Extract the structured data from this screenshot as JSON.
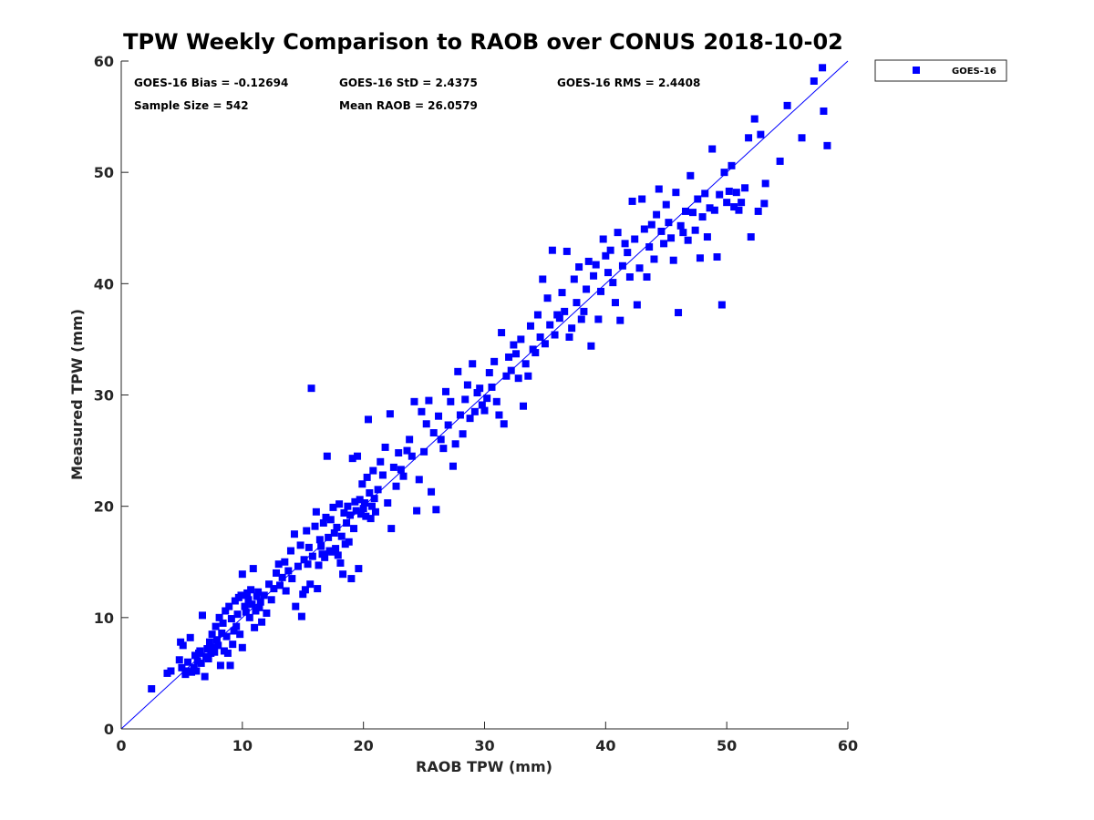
{
  "colors": {
    "series": "#0000ff",
    "axis": "#262626",
    "background": "#ffffff"
  },
  "chart_data": {
    "type": "scatter",
    "title": "TPW Weekly Comparison to RAOB over CONUS 2018-10-02",
    "xlabel": "RAOB TPW (mm)",
    "ylabel": "Measured TPW (mm)",
    "xlim": [
      0,
      60
    ],
    "ylim": [
      0,
      60
    ],
    "xticks": [
      0,
      10,
      20,
      30,
      40,
      50,
      60
    ],
    "yticks": [
      0,
      10,
      20,
      30,
      40,
      50,
      60
    ],
    "grid": false,
    "legend_position": "outside-top-right",
    "reference_line": {
      "type": "one-to-one",
      "from": [
        0,
        0
      ],
      "to": [
        60,
        60
      ]
    },
    "stats": {
      "bias": "GOES-16 Bias = -0.12694",
      "std": "GOES-16 StD = 2.4375",
      "rms": "GOES-16 RMS = 2.4408",
      "sample_size": "Sample Size = 542",
      "mean_raob": "Mean RAOB = 26.0579"
    },
    "series": [
      {
        "name": "GOES-16",
        "marker": "square",
        "points": [
          [
            2.5,
            3.6
          ],
          [
            3.8,
            5.0
          ],
          [
            4.1,
            5.2
          ],
          [
            4.8,
            6.2
          ],
          [
            4.9,
            7.8
          ],
          [
            5.0,
            5.5
          ],
          [
            5.1,
            7.5
          ],
          [
            5.3,
            4.9
          ],
          [
            5.4,
            5.2
          ],
          [
            5.5,
            6.0
          ],
          [
            5.7,
            8.2
          ],
          [
            5.8,
            5.1
          ],
          [
            6.0,
            5.5
          ],
          [
            6.1,
            6.6
          ],
          [
            6.2,
            5.2
          ],
          [
            6.3,
            6.1
          ],
          [
            6.4,
            6.8
          ],
          [
            6.5,
            7.0
          ],
          [
            6.6,
            5.9
          ],
          [
            6.7,
            10.2
          ],
          [
            6.9,
            4.7
          ],
          [
            7.0,
            6.5
          ],
          [
            7.1,
            7.2
          ],
          [
            7.2,
            6.3
          ],
          [
            7.3,
            7.8
          ],
          [
            7.4,
            6.8
          ],
          [
            7.5,
            8.5
          ],
          [
            7.6,
            7.3
          ],
          [
            7.7,
            6.9
          ],
          [
            7.8,
            9.2
          ],
          [
            7.9,
            8.0
          ],
          [
            8.0,
            7.5
          ],
          [
            8.1,
            10.0
          ],
          [
            8.2,
            5.7
          ],
          [
            8.3,
            8.6
          ],
          [
            8.4,
            9.5
          ],
          [
            8.5,
            7.0
          ],
          [
            8.6,
            10.6
          ],
          [
            8.7,
            8.3
          ],
          [
            8.8,
            6.8
          ],
          [
            8.9,
            11.0
          ],
          [
            9.0,
            5.7
          ],
          [
            9.1,
            9.9
          ],
          [
            9.2,
            7.6
          ],
          [
            9.3,
            8.8
          ],
          [
            9.4,
            11.5
          ],
          [
            9.5,
            9.2
          ],
          [
            9.6,
            10.3
          ],
          [
            9.7,
            11.8
          ],
          [
            9.8,
            8.5
          ],
          [
            9.9,
            12.0
          ],
          [
            10.0,
            13.9
          ],
          [
            10.0,
            7.3
          ],
          [
            10.2,
            11.0
          ],
          [
            10.3,
            10.5
          ],
          [
            10.4,
            12.2
          ],
          [
            10.5,
            11.6
          ],
          [
            10.6,
            10.0
          ],
          [
            10.7,
            12.5
          ],
          [
            10.8,
            11.2
          ],
          [
            10.9,
            14.4
          ],
          [
            11.0,
            9.1
          ],
          [
            11.1,
            10.6
          ],
          [
            11.2,
            11.9
          ],
          [
            11.3,
            12.3
          ],
          [
            11.4,
            10.9
          ],
          [
            11.5,
            11.4
          ],
          [
            11.6,
            9.6
          ],
          [
            11.8,
            12.0
          ],
          [
            12.0,
            10.4
          ],
          [
            12.2,
            13.0
          ],
          [
            12.4,
            11.6
          ],
          [
            12.6,
            12.6
          ],
          [
            12.8,
            14.0
          ],
          [
            13.0,
            14.8
          ],
          [
            13.1,
            12.9
          ],
          [
            13.3,
            13.6
          ],
          [
            13.5,
            15.0
          ],
          [
            13.6,
            12.4
          ],
          [
            13.8,
            14.2
          ],
          [
            14.0,
            16.0
          ],
          [
            14.1,
            13.5
          ],
          [
            14.3,
            17.5
          ],
          [
            14.4,
            11.0
          ],
          [
            14.6,
            14.6
          ],
          [
            14.8,
            16.5
          ],
          [
            14.9,
            10.1
          ],
          [
            15.0,
            12.1
          ],
          [
            15.1,
            15.2
          ],
          [
            15.2,
            12.5
          ],
          [
            15.3,
            17.8
          ],
          [
            15.4,
            14.8
          ],
          [
            15.5,
            16.3
          ],
          [
            15.6,
            13.0
          ],
          [
            15.7,
            30.6
          ],
          [
            15.8,
            15.5
          ],
          [
            16.0,
            18.2
          ],
          [
            16.1,
            19.5
          ],
          [
            16.2,
            12.6
          ],
          [
            16.3,
            14.7
          ],
          [
            16.4,
            17.0
          ],
          [
            16.5,
            16.4
          ],
          [
            16.6,
            15.7
          ],
          [
            16.7,
            18.5
          ],
          [
            16.8,
            15.4
          ],
          [
            16.9,
            19.0
          ],
          [
            17.0,
            24.5
          ],
          [
            17.1,
            17.2
          ],
          [
            17.2,
            16.0
          ],
          [
            17.3,
            18.8
          ],
          [
            17.4,
            15.9
          ],
          [
            17.5,
            19.9
          ],
          [
            17.6,
            17.6
          ],
          [
            17.7,
            16.2
          ],
          [
            17.8,
            18.1
          ],
          [
            17.9,
            15.6
          ],
          [
            18.0,
            20.2
          ],
          [
            18.1,
            14.9
          ],
          [
            18.2,
            17.3
          ],
          [
            18.3,
            13.9
          ],
          [
            18.4,
            19.4
          ],
          [
            18.5,
            16.6
          ],
          [
            18.6,
            18.5
          ],
          [
            18.7,
            20.0
          ],
          [
            18.8,
            16.8
          ],
          [
            18.9,
            19.2
          ],
          [
            19.0,
            13.5
          ],
          [
            19.1,
            24.3
          ],
          [
            19.2,
            18.0
          ],
          [
            19.3,
            20.4
          ],
          [
            19.4,
            19.6
          ],
          [
            19.5,
            24.5
          ],
          [
            19.6,
            14.4
          ],
          [
            19.7,
            20.6
          ],
          [
            19.8,
            19.3
          ],
          [
            19.9,
            22.0
          ],
          [
            20.0,
            19.8
          ],
          [
            20.1,
            20.3
          ],
          [
            20.2,
            19.1
          ],
          [
            20.3,
            22.6
          ],
          [
            20.4,
            27.8
          ],
          [
            20.5,
            21.2
          ],
          [
            20.6,
            18.9
          ],
          [
            20.7,
            20.0
          ],
          [
            20.8,
            23.2
          ],
          [
            20.9,
            20.7
          ],
          [
            21.0,
            19.5
          ],
          [
            21.2,
            21.5
          ],
          [
            21.4,
            24.0
          ],
          [
            21.6,
            22.8
          ],
          [
            21.8,
            25.3
          ],
          [
            22.0,
            20.3
          ],
          [
            22.2,
            28.3
          ],
          [
            22.3,
            18.0
          ],
          [
            22.5,
            23.5
          ],
          [
            22.7,
            21.8
          ],
          [
            22.9,
            24.8
          ],
          [
            23.1,
            23.3
          ],
          [
            23.3,
            22.7
          ],
          [
            23.6,
            25.0
          ],
          [
            23.8,
            26.0
          ],
          [
            24.0,
            24.5
          ],
          [
            24.2,
            29.4
          ],
          [
            24.4,
            19.6
          ],
          [
            24.6,
            22.4
          ],
          [
            24.8,
            28.5
          ],
          [
            25.0,
            24.9
          ],
          [
            25.2,
            27.4
          ],
          [
            25.4,
            29.5
          ],
          [
            25.6,
            21.3
          ],
          [
            25.8,
            26.6
          ],
          [
            26.0,
            19.7
          ],
          [
            26.2,
            28.1
          ],
          [
            26.4,
            26.0
          ],
          [
            26.6,
            25.2
          ],
          [
            26.8,
            30.3
          ],
          [
            27.0,
            27.3
          ],
          [
            27.2,
            29.4
          ],
          [
            27.4,
            23.6
          ],
          [
            27.6,
            25.6
          ],
          [
            27.8,
            32.1
          ],
          [
            28.0,
            28.2
          ],
          [
            28.2,
            26.5
          ],
          [
            28.4,
            29.6
          ],
          [
            28.6,
            30.9
          ],
          [
            28.8,
            27.9
          ],
          [
            29.0,
            32.8
          ],
          [
            29.2,
            28.5
          ],
          [
            29.4,
            30.2
          ],
          [
            29.6,
            30.6
          ],
          [
            29.8,
            29.1
          ],
          [
            30.0,
            28.6
          ],
          [
            30.2,
            29.7
          ],
          [
            30.4,
            32.0
          ],
          [
            30.6,
            30.7
          ],
          [
            30.8,
            33.0
          ],
          [
            31.0,
            29.4
          ],
          [
            31.2,
            28.2
          ],
          [
            31.4,
            35.6
          ],
          [
            31.6,
            27.4
          ],
          [
            31.8,
            31.7
          ],
          [
            32.0,
            33.4
          ],
          [
            32.2,
            32.2
          ],
          [
            32.4,
            34.5
          ],
          [
            32.6,
            33.7
          ],
          [
            32.8,
            31.5
          ],
          [
            33.0,
            35.0
          ],
          [
            33.2,
            29.0
          ],
          [
            33.4,
            32.8
          ],
          [
            33.6,
            31.7
          ],
          [
            33.8,
            36.2
          ],
          [
            34.0,
            34.1
          ],
          [
            34.2,
            33.8
          ],
          [
            34.4,
            37.2
          ],
          [
            34.6,
            35.2
          ],
          [
            34.8,
            40.4
          ],
          [
            35.0,
            34.6
          ],
          [
            35.2,
            38.7
          ],
          [
            35.4,
            36.3
          ],
          [
            35.6,
            43.0
          ],
          [
            35.8,
            35.4
          ],
          [
            36.0,
            37.2
          ],
          [
            36.2,
            36.9
          ],
          [
            36.4,
            39.2
          ],
          [
            36.6,
            37.5
          ],
          [
            36.8,
            42.9
          ],
          [
            37.0,
            35.2
          ],
          [
            37.2,
            36.0
          ],
          [
            37.4,
            40.4
          ],
          [
            37.6,
            38.3
          ],
          [
            37.8,
            41.5
          ],
          [
            38.0,
            36.8
          ],
          [
            38.2,
            37.5
          ],
          [
            38.4,
            39.5
          ],
          [
            38.6,
            42.0
          ],
          [
            38.8,
            34.4
          ],
          [
            39.0,
            40.7
          ],
          [
            39.2,
            41.7
          ],
          [
            39.4,
            36.8
          ],
          [
            39.6,
            39.3
          ],
          [
            39.8,
            44.0
          ],
          [
            40.0,
            42.5
          ],
          [
            40.2,
            41.0
          ],
          [
            40.4,
            43.0
          ],
          [
            40.6,
            40.1
          ],
          [
            40.8,
            38.3
          ],
          [
            41.0,
            44.6
          ],
          [
            41.2,
            36.7
          ],
          [
            41.4,
            41.6
          ],
          [
            41.6,
            43.6
          ],
          [
            41.8,
            42.8
          ],
          [
            42.0,
            40.6
          ],
          [
            42.2,
            47.4
          ],
          [
            42.4,
            44.0
          ],
          [
            42.6,
            38.1
          ],
          [
            42.8,
            41.4
          ],
          [
            43.0,
            47.6
          ],
          [
            43.2,
            44.9
          ],
          [
            43.4,
            40.6
          ],
          [
            43.6,
            43.3
          ],
          [
            43.8,
            45.3
          ],
          [
            44.0,
            42.2
          ],
          [
            44.2,
            46.2
          ],
          [
            44.4,
            48.5
          ],
          [
            44.6,
            44.7
          ],
          [
            44.8,
            43.6
          ],
          [
            45.0,
            47.1
          ],
          [
            45.2,
            45.5
          ],
          [
            45.4,
            44.1
          ],
          [
            45.6,
            42.1
          ],
          [
            45.8,
            48.2
          ],
          [
            46.0,
            37.4
          ],
          [
            46.2,
            45.2
          ],
          [
            46.4,
            44.6
          ],
          [
            46.6,
            46.5
          ],
          [
            46.8,
            43.9
          ],
          [
            47.0,
            49.7
          ],
          [
            47.2,
            46.4
          ],
          [
            47.4,
            44.8
          ],
          [
            47.6,
            47.6
          ],
          [
            47.8,
            42.3
          ],
          [
            48.0,
            46.0
          ],
          [
            48.2,
            48.1
          ],
          [
            48.4,
            44.2
          ],
          [
            48.6,
            46.8
          ],
          [
            48.8,
            52.1
          ],
          [
            49.0,
            46.6
          ],
          [
            49.2,
            42.4
          ],
          [
            49.4,
            48.0
          ],
          [
            49.6,
            38.1
          ],
          [
            49.8,
            50.0
          ],
          [
            50.0,
            47.3
          ],
          [
            50.2,
            48.3
          ],
          [
            50.4,
            50.6
          ],
          [
            50.6,
            46.9
          ],
          [
            50.8,
            48.2
          ],
          [
            51.0,
            46.6
          ],
          [
            51.2,
            47.3
          ],
          [
            51.5,
            48.6
          ],
          [
            51.8,
            53.1
          ],
          [
            52.0,
            44.2
          ],
          [
            52.3,
            54.8
          ],
          [
            52.6,
            46.5
          ],
          [
            52.8,
            53.4
          ],
          [
            53.1,
            47.2
          ],
          [
            53.2,
            49.0
          ],
          [
            54.4,
            51.0
          ],
          [
            55.0,
            56.0
          ],
          [
            56.2,
            53.1
          ],
          [
            57.2,
            58.2
          ],
          [
            57.9,
            59.4
          ],
          [
            58.0,
            55.5
          ],
          [
            58.3,
            52.4
          ]
        ]
      }
    ]
  }
}
